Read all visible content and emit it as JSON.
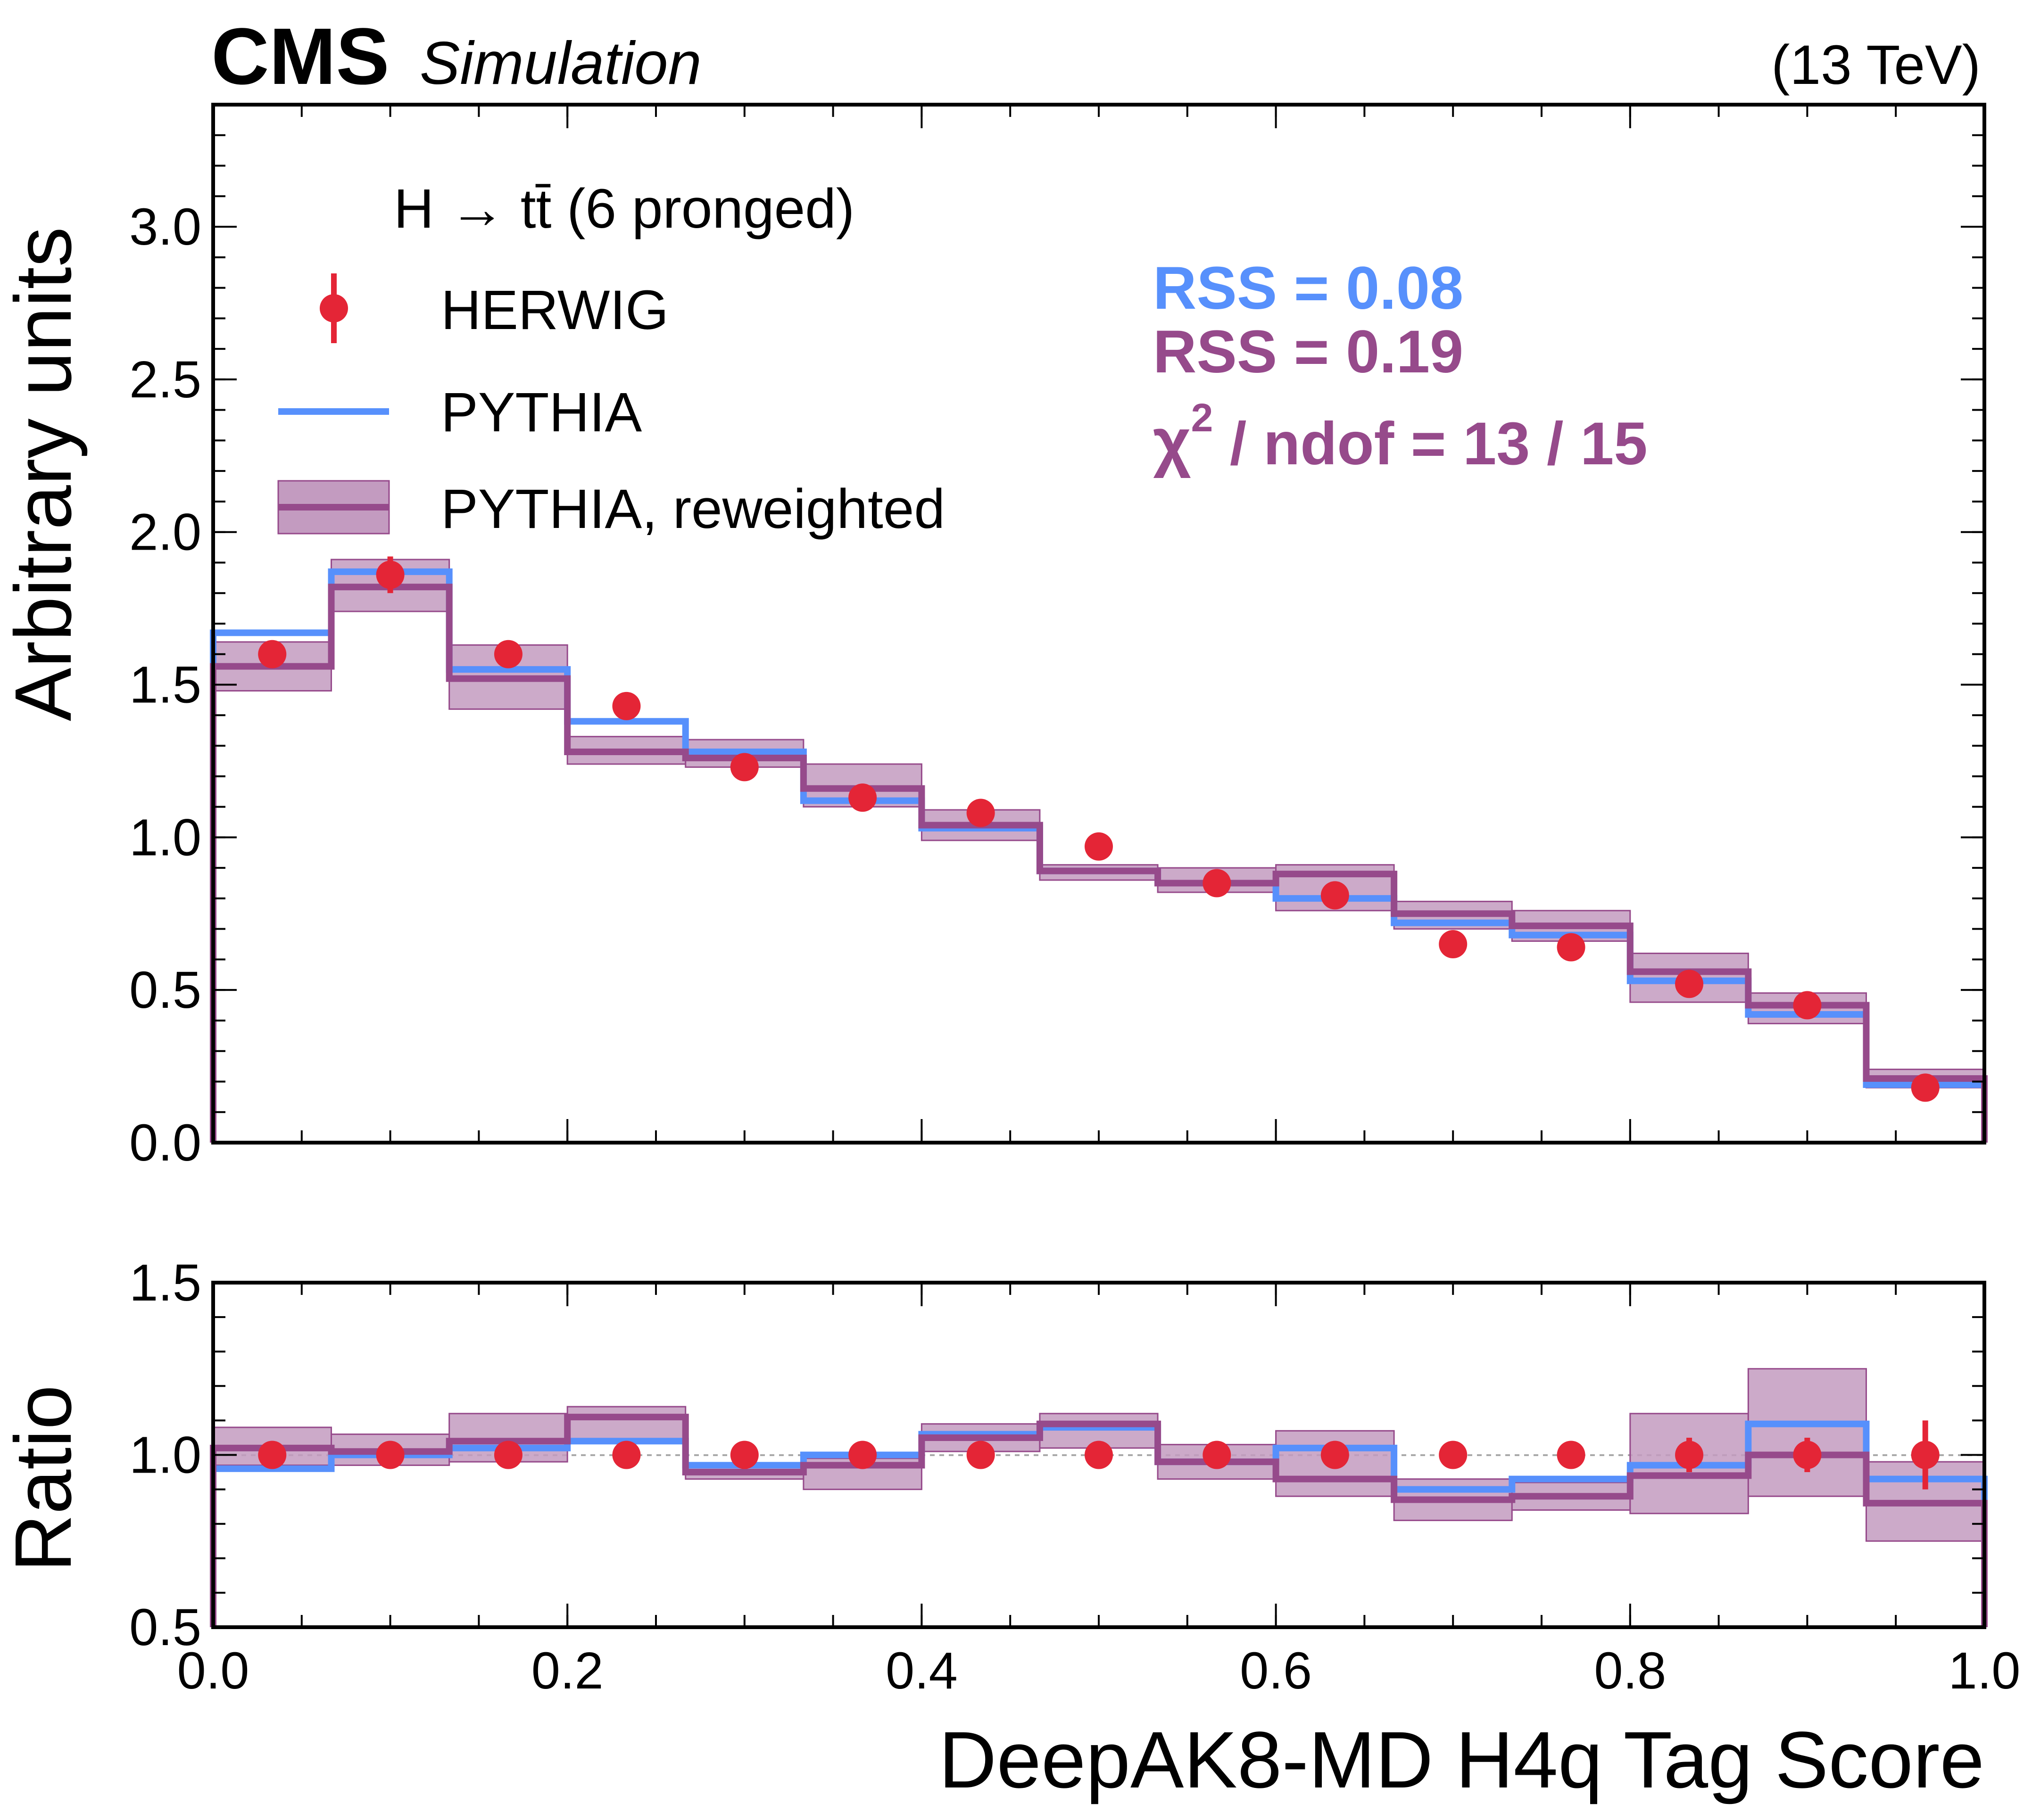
{
  "header": {
    "experiment": "CMS",
    "subtitle": "Simulation",
    "energy": "(13 TeV)"
  },
  "legend": {
    "title": "H → tt̄ (6 pronged)",
    "entries": [
      "HERWIG",
      "PYTHIA",
      "PYTHIA, reweighted"
    ]
  },
  "stats": {
    "rss_pythia": "RSS = 0.08",
    "rss_reweighted": "RSS = 0.19",
    "chi2_prefix": "χ",
    "chi2_sup": "2",
    "chi2_suffix": " / ndof = 13 / 15"
  },
  "colors": {
    "herwig": "#e42536",
    "pythia": "#5790fc",
    "reweighted": "#964a8b",
    "reweighted_band": "#c39bc0"
  },
  "chart_data": [
    {
      "type": "line",
      "title": "",
      "xlabel": "DeepAK8-MD H4q Tag Score",
      "ylabel": "Arbitrary units",
      "xlim": [
        0.0,
        1.0
      ],
      "ylim": [
        0.0,
        3.4
      ],
      "yticks": [
        "0.0",
        "0.5",
        "1.0",
        "1.5",
        "2.0",
        "2.5",
        "3.0"
      ],
      "xticks": [
        "0.0",
        "0.2",
        "0.4",
        "0.6",
        "0.8",
        "1.0"
      ],
      "bin_edges": [
        0.0,
        0.0667,
        0.1333,
        0.2,
        0.2667,
        0.3333,
        0.4,
        0.4667,
        0.5333,
        0.6,
        0.6667,
        0.7333,
        0.8,
        0.8667,
        0.9333,
        1.0
      ],
      "series": [
        {
          "name": "HERWIG",
          "kind": "points",
          "values": [
            1.6,
            1.86,
            1.6,
            1.43,
            1.23,
            1.13,
            1.08,
            0.97,
            0.85,
            0.81,
            0.65,
            0.64,
            0.52,
            0.45,
            0.18
          ],
          "errors": [
            0.04,
            0.06,
            0.04,
            0.04,
            0.03,
            0.03,
            0.03,
            0.03,
            0.02,
            0.02,
            0.02,
            0.02,
            0.02,
            0.02,
            0.02
          ]
        },
        {
          "name": "PYTHIA",
          "kind": "step",
          "values": [
            1.67,
            1.87,
            1.55,
            1.38,
            1.28,
            1.12,
            1.03,
            0.89,
            0.85,
            0.8,
            0.72,
            0.68,
            0.53,
            0.42,
            0.19
          ]
        },
        {
          "name": "PYTHIA, reweighted",
          "kind": "step_band",
          "values": [
            1.56,
            1.82,
            1.52,
            1.28,
            1.26,
            1.16,
            1.04,
            0.89,
            0.85,
            0.88,
            0.75,
            0.71,
            0.56,
            0.45,
            0.21
          ],
          "band_low": [
            1.48,
            1.74,
            1.42,
            1.24,
            1.23,
            1.1,
            0.99,
            0.86,
            0.82,
            0.76,
            0.7,
            0.66,
            0.46,
            0.39,
            0.18
          ],
          "band_high": [
            1.64,
            1.91,
            1.63,
            1.33,
            1.32,
            1.24,
            1.09,
            0.91,
            0.9,
            0.91,
            0.79,
            0.76,
            0.62,
            0.49,
            0.24
          ]
        }
      ]
    },
    {
      "type": "line",
      "title": "",
      "xlabel": "DeepAK8-MD H4q Tag Score",
      "ylabel": "Ratio",
      "xlim": [
        0.0,
        1.0
      ],
      "ylim": [
        0.5,
        1.5
      ],
      "yticks": [
        "0.5",
        "1.0",
        "1.5"
      ],
      "xticks": [
        "0.0",
        "0.2",
        "0.4",
        "0.6",
        "0.8",
        "1.0"
      ],
      "bin_edges": [
        0.0,
        0.0667,
        0.1333,
        0.2,
        0.2667,
        0.3333,
        0.4,
        0.4667,
        0.5333,
        0.6,
        0.6667,
        0.7333,
        0.8,
        0.8667,
        0.9333,
        1.0
      ],
      "series": [
        {
          "name": "HERWIG",
          "kind": "points",
          "values": [
            1.0,
            1.0,
            1.0,
            1.0,
            1.0,
            1.0,
            1.0,
            1.0,
            1.0,
            1.0,
            1.0,
            1.0,
            1.0,
            1.0,
            1.0
          ],
          "errors": [
            0.02,
            0.02,
            0.02,
            0.02,
            0.02,
            0.02,
            0.02,
            0.02,
            0.03,
            0.03,
            0.04,
            0.04,
            0.05,
            0.05,
            0.1
          ]
        },
        {
          "name": "PYTHIA",
          "kind": "step",
          "values": [
            0.96,
            1.0,
            1.02,
            1.04,
            0.97,
            1.0,
            1.06,
            1.08,
            0.98,
            1.02,
            0.9,
            0.93,
            0.97,
            1.09,
            0.93
          ]
        },
        {
          "name": "PYTHIA, reweighted",
          "kind": "step_band",
          "values": [
            1.02,
            1.01,
            1.04,
            1.11,
            0.95,
            0.97,
            1.05,
            1.09,
            0.98,
            0.93,
            0.87,
            0.88,
            0.94,
            1.0,
            0.86
          ],
          "band_low": [
            0.97,
            0.97,
            0.98,
            1.04,
            0.93,
            0.9,
            1.01,
            1.02,
            0.93,
            0.88,
            0.81,
            0.84,
            0.83,
            0.88,
            0.75
          ],
          "band_high": [
            1.08,
            1.06,
            1.12,
            1.14,
            0.97,
            0.99,
            1.09,
            1.12,
            1.03,
            1.07,
            0.93,
            0.92,
            1.12,
            1.25,
            0.98
          ]
        }
      ]
    }
  ]
}
